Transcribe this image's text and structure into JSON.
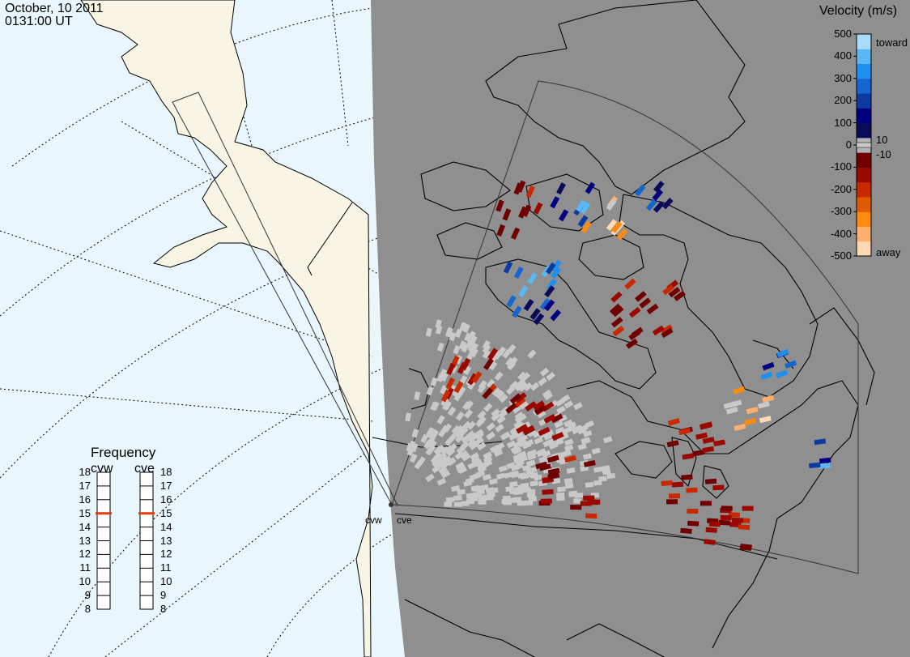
{
  "header": {
    "date": "October, 10 2011",
    "time": "0131:00 UT"
  },
  "colorbar": {
    "title": "Velocity (m/s)",
    "ticks": [
      "500",
      "400",
      "300",
      "200",
      "100",
      "0",
      "-100",
      "-200",
      "-300",
      "-400",
      "-500"
    ],
    "extra_ticks": [
      "10",
      "-10"
    ],
    "toward_label": "toward",
    "away_label": "away",
    "colors": [
      "#ffd9b3",
      "#ffb070",
      "#ff8a10",
      "#e05a00",
      "#c82a00",
      "#9a0800",
      "#700000",
      "#b3b3b3",
      "#0a0a5a",
      "#000080",
      "#0d3aa0",
      "#1566d0",
      "#1f90f0",
      "#5ab8f5",
      "#a9dcfa"
    ]
  },
  "frequency": {
    "title": "Frequency",
    "radars": [
      {
        "name": "cvw",
        "value_mhz": 15
      },
      {
        "name": "cve",
        "value_mhz": 15
      }
    ],
    "scale": [
      "18",
      "17",
      "16",
      "15",
      "14",
      "13",
      "12",
      "11",
      "10",
      "9",
      "8"
    ],
    "marker_color": "#e04010"
  },
  "sites": [
    {
      "name": "cvw"
    },
    {
      "name": "cve"
    }
  ],
  "map": {
    "ocean_color": "#e9f6fe",
    "land_color": "#f8f5e4",
    "night_color": "#8f8f8f",
    "coast_color": "#000000",
    "ground_scatter_color": "#c9c9c9"
  }
}
